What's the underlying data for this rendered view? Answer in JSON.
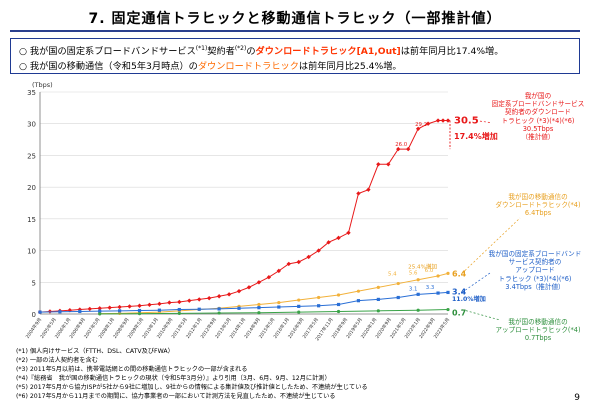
{
  "page": {
    "title": "7. 固定通信トラヒックと移動通信トラヒック（一部推計値）",
    "page_number": "9"
  },
  "summary": {
    "line1": {
      "prefix": "○ 我が国の固定系ブロードバンドサービス",
      "sup1": "(*1)",
      "mid": "契約者",
      "sup2": "(*2)",
      "of": "の",
      "highlight": "ダウンロードトラヒック[A1,Out]",
      "suffix": "は前年同月比17.4%増。"
    },
    "line2": {
      "prefix": "○ 我が国の移動通信（令和5年3月時点）の",
      "highlight": "ダウンロードトラヒック",
      "suffix": "は前年同月比25.4%増。"
    }
  },
  "callouts": {
    "fixed_down": [
      "我が国の",
      "固定系ブロードバンドサービス",
      "契約者のダウンロード",
      "トラヒック (*3)(*4)(*6) 30.5Tbps",
      "（推計値）"
    ],
    "mobile_down": [
      "我が国の移動通信の",
      "ダウンロードトラヒック(*4)",
      "6.4Tbps"
    ],
    "fixed_up": [
      "我が国の固定系ブロードバンド",
      "サービス契約者の",
      "アップロード",
      "トラヒック (*3)(*4)(*6)",
      "3.4Tbps（推計値）"
    ],
    "mobile_up": [
      "我が国の移動通信の",
      "アップロードトラヒック(*4)",
      "0.7Tbps"
    ]
  },
  "annotations": {
    "fixed_growth": "17.4%増加",
    "mobile_growth": "25.4%増加",
    "fixed_up_growth": "11.0%増加",
    "end_fixed_down": "30.5",
    "end_mobile_down": "6.4",
    "end_fixed_up": "3.4",
    "end_mobile_up": "0.7"
  },
  "footnotes": [
    "(*1) 個人向けサービス（FTTH、DSL、CATV及びFWA）",
    "(*2) 一部の法人契約者を含む",
    "(*3) 2011年5月以前は、携帯電話網との間の移動通信トラヒックの一部が含まれる",
    "(*4)『総務省　我が国の移動通信トラヒックの現状（令和5年3月分）』より引用（3月、6月、9月、12月に計測）",
    "(*5) 2017年5月から協力ISPが5社から9社に増加し、9社からの情報による集計値及び推計値としたため、不連続が生じている",
    "(*6) 2017年5月から11月までの期間に、協力事業者の一部において計測方法を見直したため、不連続が生じている"
  ],
  "chart_data": {
    "type": "line",
    "ylabel": "(Tbps)",
    "ylim": [
      0,
      35
    ],
    "yticks": [
      0,
      5,
      10,
      15,
      20,
      25,
      30,
      35
    ],
    "x_tick_labels": [
      "2004年9月",
      "2005年5月",
      "2006年1月",
      "2006年9月",
      "2007年5月",
      "2008年1月",
      "2008年9月",
      "2009年5月",
      "2010年1月",
      "2010年9月",
      "2011年5月",
      "2012年1月",
      "2012年9月",
      "2013年5月",
      "2014年1月",
      "2014年9月",
      "2015年5月",
      "2016年1月",
      "2016年9月",
      "2017年5月",
      "2017年11月",
      "2018年9月",
      "2019年5月",
      "2020年1月",
      "2020年9月",
      "2021年5月",
      "2022年1月",
      "2022年9月",
      "2023年5月"
    ],
    "grid": true,
    "series": [
      {
        "name": "固定系ダウンロード",
        "color": "#e8191a",
        "marker": "diamond",
        "x": [
          0,
          2,
          4,
          6,
          8,
          10,
          12,
          14,
          16,
          18,
          20,
          22,
          24,
          26,
          28,
          30,
          32,
          34,
          36,
          38,
          40,
          42,
          44,
          46,
          48,
          50,
          52,
          54,
          56,
          58,
          60,
          62,
          64,
          66,
          68,
          70,
          72,
          74,
          76,
          78,
          80,
          81,
          82
        ],
        "values": [
          0.3,
          0.4,
          0.5,
          0.6,
          0.7,
          0.8,
          0.9,
          1.0,
          1.1,
          1.2,
          1.3,
          1.45,
          1.6,
          1.8,
          1.9,
          2.1,
          2.3,
          2.5,
          2.8,
          3.1,
          3.6,
          4.2,
          5.0,
          5.8,
          6.8,
          7.9,
          8.2,
          9.0,
          10.0,
          11.3,
          12.0,
          12.8,
          19.0,
          19.6,
          23.6,
          23.6,
          26.0,
          26.0,
          29.2,
          30.0,
          30.5,
          30.5,
          30.5
        ]
      },
      {
        "name": "移動通信ダウンロード",
        "color": "#f2b13a",
        "marker": "circle",
        "x": [
          12,
          16,
          20,
          24,
          28,
          32,
          36,
          40,
          44,
          48,
          52,
          56,
          60,
          64,
          68,
          72,
          76,
          80,
          82
        ],
        "values": [
          0.05,
          0.1,
          0.2,
          0.3,
          0.5,
          0.7,
          0.9,
          1.2,
          1.5,
          1.8,
          2.2,
          2.6,
          3.0,
          3.6,
          4.2,
          4.8,
          5.4,
          6.0,
          6.4
        ]
      },
      {
        "name": "固定系アップロード",
        "color": "#2a6fd6",
        "marker": "square",
        "x": [
          0,
          4,
          8,
          12,
          16,
          20,
          24,
          28,
          32,
          36,
          40,
          44,
          48,
          52,
          56,
          60,
          64,
          68,
          72,
          76,
          80,
          82
        ],
        "values": [
          0.3,
          0.35,
          0.4,
          0.45,
          0.5,
          0.55,
          0.6,
          0.7,
          0.75,
          0.8,
          0.9,
          1.0,
          1.1,
          1.2,
          1.3,
          1.5,
          2.1,
          2.3,
          2.6,
          3.1,
          3.3,
          3.4
        ]
      },
      {
        "name": "移動通信アップロード",
        "color": "#3aa348",
        "marker": "circle",
        "x": [
          12,
          20,
          28,
          36,
          44,
          52,
          60,
          68,
          76,
          82
        ],
        "values": [
          0.02,
          0.05,
          0.1,
          0.15,
          0.2,
          0.3,
          0.4,
          0.5,
          0.6,
          0.7
        ]
      }
    ],
    "point_labels": [
      {
        "series": 0,
        "text": "29.2",
        "value": 29.2
      },
      {
        "series": 0,
        "text": "26.0",
        "value": 26.0
      },
      {
        "series": 1,
        "text": "5.4",
        "value": 5.4
      },
      {
        "series": 1,
        "text": "5.6",
        "value": 5.6
      },
      {
        "series": 1,
        "text": "6.0",
        "value": 6.0
      },
      {
        "series": 2,
        "text": "3.1",
        "value": 3.1
      },
      {
        "series": 2,
        "text": "3.3",
        "value": 3.3
      }
    ]
  }
}
